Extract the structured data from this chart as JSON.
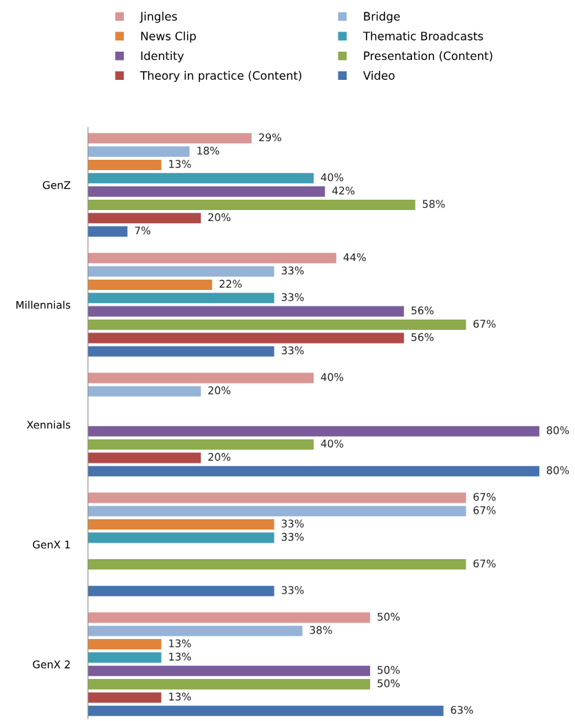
{
  "chart_data": {
    "type": "bar",
    "orientation": "horizontal",
    "legend": "top",
    "grid": false,
    "marker": "square",
    "categories": [
      "GenZ",
      "Millennials",
      "Xennials",
      "GenX 1",
      "GenX 2"
    ],
    "series": [
      {
        "name": "Jingles",
        "color": "#d99694",
        "values": [
          29,
          44,
          40,
          67,
          50
        ],
        "value_labels": [
          "29%",
          "44%",
          "40%",
          "67%",
          "50%"
        ]
      },
      {
        "name": "Bridge",
        "color": "#95b3d7",
        "values": [
          18,
          33,
          20,
          67,
          38
        ],
        "value_labels": [
          "18%",
          "33%",
          "20%",
          "67%",
          "38%"
        ]
      },
      {
        "name": "News Clip",
        "color": "#e0843b",
        "values": [
          13,
          22,
          null,
          33,
          13
        ],
        "value_labels": [
          "13%",
          "22%",
          null,
          "33%",
          "13%"
        ]
      },
      {
        "name": "Thematic Broadcasts",
        "color": "#3f9db3",
        "values": [
          40,
          33,
          null,
          33,
          13
        ],
        "value_labels": [
          "40%",
          "33%",
          null,
          "33%",
          "13%"
        ]
      },
      {
        "name": "Identity",
        "color": "#7b5c9a",
        "values": [
          42,
          56,
          80,
          null,
          50
        ],
        "value_labels": [
          "42%",
          "56%",
          "80%",
          null,
          "50%"
        ]
      },
      {
        "name": "Presentation (Content)",
        "color": "#8eab4d",
        "values": [
          58,
          67,
          40,
          67,
          50
        ],
        "value_labels": [
          "58%",
          "67%",
          "40%",
          "67%",
          "50%"
        ]
      },
      {
        "name": "Theory in practice (Content)",
        "color": "#b04a47",
        "values": [
          20,
          56,
          20,
          null,
          13
        ],
        "value_labels": [
          "20%",
          "56%",
          "20%",
          null,
          "13%"
        ]
      },
      {
        "name": "Video",
        "color": "#4673ad",
        "values": [
          7,
          33,
          80,
          33,
          63
        ],
        "value_labels": [
          "7%",
          "33%",
          "80%",
          "33%",
          "63%"
        ]
      }
    ]
  }
}
